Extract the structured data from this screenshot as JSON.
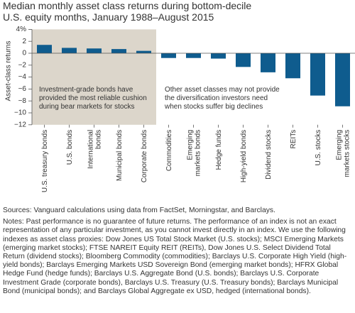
{
  "chart_data": {
    "type": "bar",
    "title": "Median monthly asset class returns during bottom-decile\nU.S. equity months, January 1988–August 2015",
    "ylabel": "Asset-class returns",
    "categories": [
      "U.S. treasury bonds",
      "U.S. bonds",
      "International\nbonds",
      "Municipal bonds",
      "Corporate bonds",
      "Commodities",
      "Emerging\nmarkets bonds",
      "Hedge funds",
      "High-yield bonds",
      "Dividend stocks",
      "REITs",
      "U.S. stocks",
      "Emerging\nmarkets stocks"
    ],
    "values": [
      1.4,
      0.9,
      0.8,
      0.7,
      0.4,
      -0.8,
      -0.8,
      -0.9,
      -2.3,
      -3.2,
      -4.2,
      -7.1,
      -8.9
    ],
    "color": "#0f5c8e",
    "ylim": [
      4,
      -12
    ],
    "yticks": [
      {
        "value": 4,
        "label": "4%"
      },
      2,
      0,
      {
        "value": -2,
        "label": "−2"
      },
      {
        "value": -4,
        "label": "−4"
      },
      {
        "value": -6,
        "label": "−6"
      },
      {
        "value": -8,
        "label": "−8"
      },
      {
        "value": -10,
        "label": "−10"
      },
      {
        "value": -12,
        "label": "−12"
      }
    ],
    "shaded_color": "#dcd6cb",
    "annotations": [
      "Investment-grade bonds have\nprovided the most reliable cushion\nduring bear markets for stocks",
      "Other asset classes may not provide\nthe diversification investors need\nwhen stocks suffer big declines"
    ]
  },
  "sources": "Sources: Vanguard calculations using data from FactSet, Morningstar, and Barclays.",
  "notes": "Notes: Past performance is no guarantee of future returns. The performance of an index is not an exact representation of any particular investment, as you cannot invest directly in an index. We use the following indexes as asset class proxies: Dow Jones US Total Stock Market (U.S. stocks); MSCI Emerging Markets (emerging market stocks); FTSE NAREIT Equity REIT (REITs), Dow Jones U.S. Select Dividend Total Return (dividend stocks); Bloomberg Commodity (commodities); Barclays U.S. Corporate High Yield (high-yield bonds); Barclays Emerging Markets USD Sovereign Bond (emerging market bonds); HFRX Global Hedge Fund (hedge funds); Barclays U.S. Aggregate Bond (U.S. bonds); Barclays U.S. Corporate Investment Grade (corporate bonds), Barclays U.S. Treasury (U.S. Treasury bonds); Barclays Municipal Bond (municipal bonds); and Barclays Global Aggregate ex USD, hedged (international bonds)."
}
